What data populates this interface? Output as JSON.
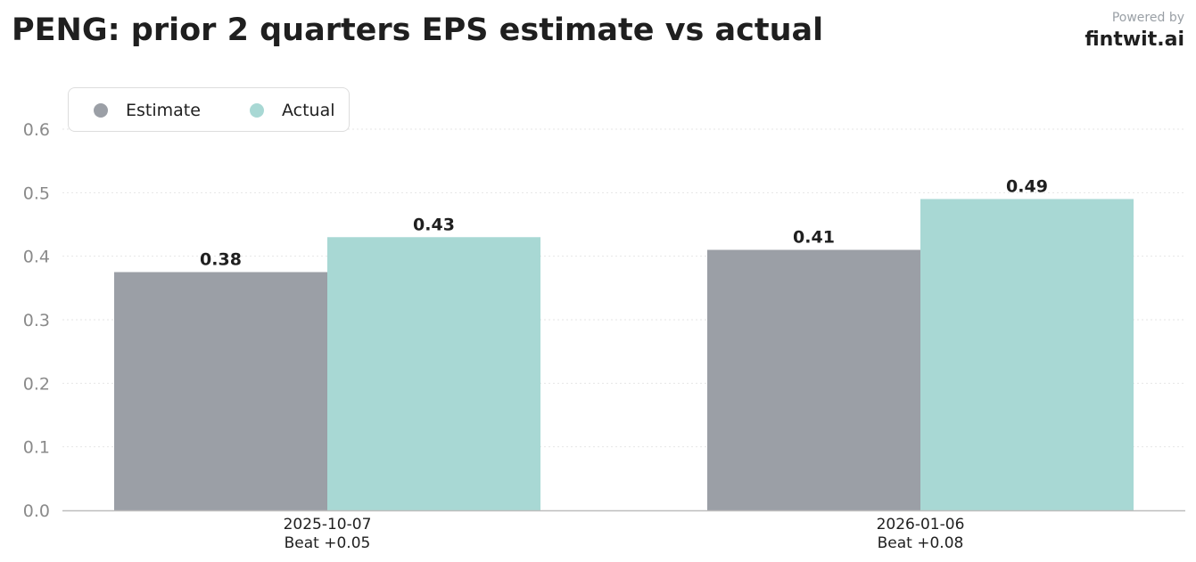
{
  "header": {
    "title": "PENG: prior 2 quarters EPS estimate vs actual",
    "powered_by": "Powered by",
    "brand": "fintwit.ai"
  },
  "colors": {
    "estimate": "#9b9fa6",
    "actual": "#a8d8d4"
  },
  "chart_data": {
    "type": "bar",
    "categories": [
      "2025-10-07",
      "2026-01-06"
    ],
    "category_sublabels": [
      "Beat +0.05",
      "Beat +0.08"
    ],
    "series": [
      {
        "name": "Estimate",
        "values": [
          0.375,
          0.41
        ],
        "labels": [
          "0.38",
          "0.41"
        ]
      },
      {
        "name": "Actual",
        "values": [
          0.43,
          0.49
        ],
        "labels": [
          "0.43",
          "0.49"
        ]
      }
    ],
    "ylim": [
      0,
      0.6
    ],
    "yticks": [
      "0.0",
      "0.1",
      "0.2",
      "0.3",
      "0.4",
      "0.5",
      "0.6"
    ],
    "grid": true,
    "legend_position": "top-left"
  }
}
